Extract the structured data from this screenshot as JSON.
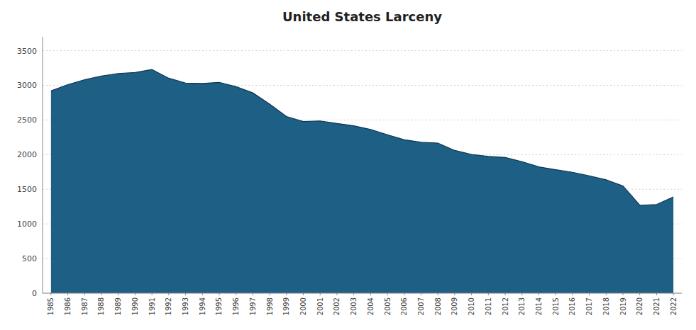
{
  "chart_data": {
    "type": "area",
    "title": "United States Larceny",
    "x": [
      1985,
      1986,
      1987,
      1988,
      1989,
      1990,
      1991,
      1992,
      1993,
      1994,
      1995,
      1996,
      1997,
      1998,
      1999,
      2000,
      2001,
      2002,
      2003,
      2004,
      2005,
      2006,
      2007,
      2008,
      2009,
      2010,
      2011,
      2012,
      2013,
      2014,
      2015,
      2016,
      2017,
      2018,
      2019,
      2020,
      2021,
      2022
    ],
    "values": [
      2920,
      3010,
      3080,
      3135,
      3171,
      3185,
      3229,
      3103,
      3033,
      3027,
      3043,
      2980,
      2891,
      2729,
      2550,
      2477,
      2486,
      2450,
      2416,
      2362,
      2287,
      2215,
      2178,
      2167,
      2060,
      2003,
      1974,
      1959,
      1899,
      1823,
      1783,
      1745,
      1694,
      1636,
      1549,
      1270,
      1280,
      1390
    ],
    "color": "#1d5f85",
    "xlim": [
      1984.5,
      2022.5
    ],
    "xticks": [
      1985,
      1986,
      1987,
      1988,
      1989,
      1990,
      1991,
      1992,
      1993,
      1994,
      1995,
      1996,
      1997,
      1998,
      1999,
      2000,
      2001,
      2002,
      2003,
      2004,
      2005,
      2006,
      2007,
      2008,
      2009,
      2010,
      2011,
      2012,
      2013,
      2014,
      2015,
      2016,
      2017,
      2018,
      2019,
      2020,
      2021,
      2022
    ],
    "ylim": [
      0,
      3700
    ],
    "yticks": [
      0,
      500,
      1000,
      1500,
      2000,
      2500,
      3000,
      3500
    ],
    "grid": true
  }
}
